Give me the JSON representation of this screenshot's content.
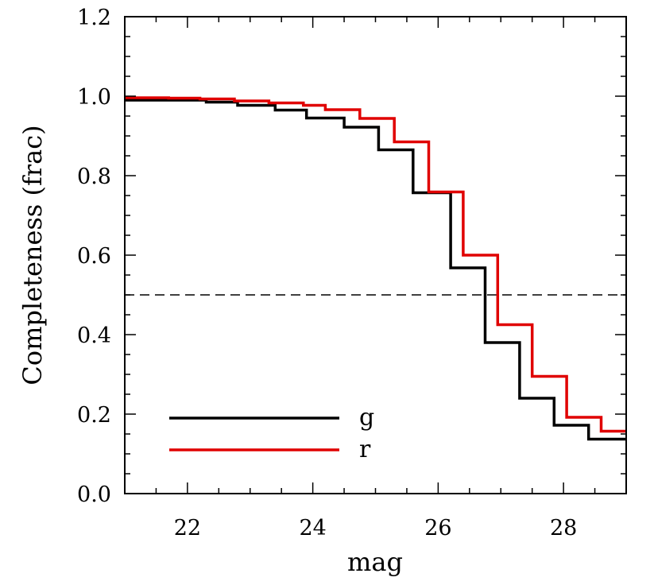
{
  "chart_data": {
    "type": "line",
    "step": true,
    "xlabel": "mag",
    "ylabel": "Completeness (frac)",
    "xlim": [
      21.0,
      29.0
    ],
    "ylim": [
      0.0,
      1.2
    ],
    "x_ticks": [
      22,
      24,
      26,
      28
    ],
    "x_tick_labels": [
      "22",
      "24",
      "26",
      "28"
    ],
    "y_ticks": [
      0.0,
      0.2,
      0.4,
      0.6,
      0.8,
      1.0,
      1.2
    ],
    "y_tick_labels": [
      "0.0",
      "0.2",
      "0.4",
      "0.6",
      "0.8",
      "1.0",
      "1.2"
    ],
    "reference_line": {
      "y": 0.5,
      "style": "dashed",
      "color": "#000000"
    },
    "legend": {
      "placement": "bottom-left",
      "entries": [
        "g",
        "r"
      ]
    },
    "series": [
      {
        "name": "g",
        "color": "#000000",
        "x": [
          21.0,
          21.7,
          22.3,
          22.8,
          23.4,
          23.9,
          24.5,
          25.05,
          25.6,
          26.2,
          26.75,
          27.3,
          27.85,
          28.4,
          29.0
        ],
        "y": [
          0.99,
          0.99,
          0.985,
          0.977,
          0.965,
          0.945,
          0.922,
          0.865,
          0.757,
          0.568,
          0.38,
          0.24,
          0.172,
          0.137,
          0.137
        ]
      },
      {
        "name": "r",
        "color": "#e00000",
        "x": [
          21.0,
          21.7,
          22.2,
          22.75,
          23.3,
          23.85,
          24.2,
          24.75,
          25.3,
          25.85,
          26.4,
          26.95,
          27.5,
          28.05,
          28.6,
          29.0
        ],
        "y": [
          0.996,
          0.995,
          0.993,
          0.988,
          0.983,
          0.977,
          0.966,
          0.944,
          0.885,
          0.759,
          0.6,
          0.425,
          0.295,
          0.192,
          0.157,
          0.157
        ]
      }
    ]
  }
}
